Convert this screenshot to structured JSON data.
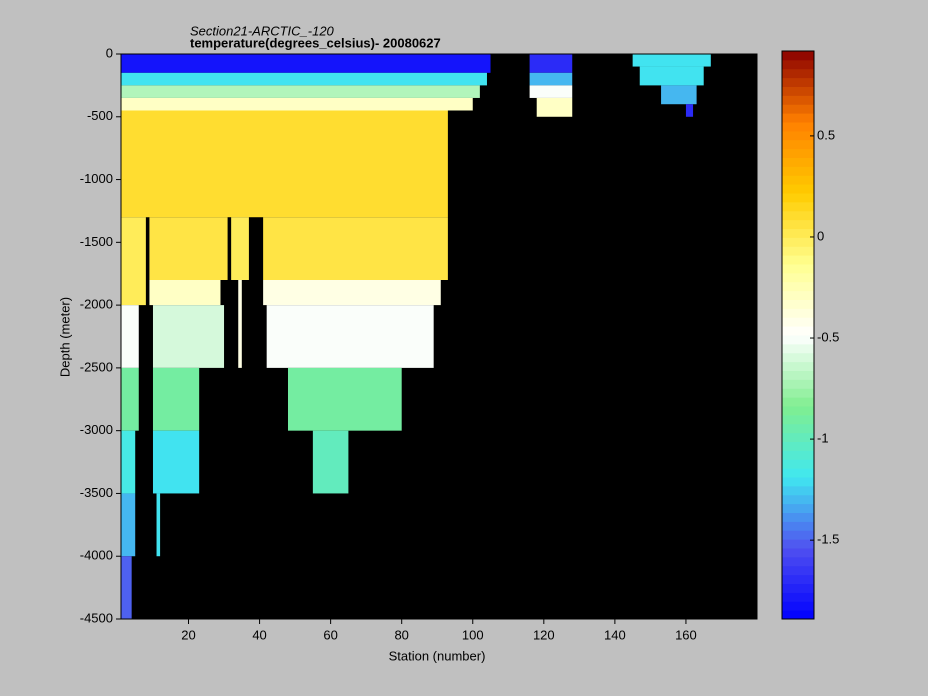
{
  "chart_data": {
    "type": "heatmap",
    "title": "Section21-ARCTIC_-120",
    "subtitle": "temperature(degrees_celsius)- 20080627",
    "x_label": "Station (number)",
    "y_label": "Depth (meter)",
    "xlim": [
      1,
      180
    ],
    "xticks": [
      20,
      40,
      60,
      80,
      100,
      120,
      140,
      160
    ],
    "ylim": [
      -4500,
      0
    ],
    "yticks": [
      0,
      -500,
      -1000,
      -1500,
      -2000,
      -2500,
      -3000,
      -3500,
      -4000,
      -4500
    ],
    "clim": [
      -1.89,
      0.92
    ],
    "cticks": [
      0.5,
      0,
      -0.5,
      -1,
      -1.5
    ],
    "background": "#000000",
    "colormap": [
      "#0000ff",
      "#5050f0",
      "#40e8f0",
      "#80ee90",
      "#ffffff",
      "#ffff90",
      "#ffcc00",
      "#ff8000",
      "#8b0000"
    ],
    "cells": [
      {
        "x": [
          1,
          105
        ],
        "depth": [
          0,
          -150
        ],
        "value": -1.8
      },
      {
        "x": [
          1,
          104
        ],
        "depth": [
          -150,
          -250
        ],
        "value": -1.2
      },
      {
        "x": [
          1,
          102
        ],
        "depth": [
          -250,
          -350
        ],
        "value": -0.7
      },
      {
        "x": [
          1,
          100
        ],
        "depth": [
          -350,
          -450
        ],
        "value": -0.3
      },
      {
        "x": [
          1,
          93
        ],
        "depth": [
          -450,
          -1300
        ],
        "value": 0.1
      },
      {
        "x": [
          1,
          8
        ],
        "depth": [
          -1300,
          -2000
        ],
        "value": 0.0
      },
      {
        "x": [
          9,
          31
        ],
        "depth": [
          -1300,
          -1800
        ],
        "value": 0.05
      },
      {
        "x": [
          32,
          37
        ],
        "depth": [
          -1300,
          -1800
        ],
        "value": 0.0
      },
      {
        "x": [
          41,
          93
        ],
        "depth": [
          -1300,
          -1800
        ],
        "value": 0.05
      },
      {
        "x": [
          9,
          29
        ],
        "depth": [
          -1800,
          -2000
        ],
        "value": -0.3
      },
      {
        "x": [
          41,
          91
        ],
        "depth": [
          -1800,
          -2000
        ],
        "value": -0.4
      },
      {
        "x": [
          34,
          35
        ],
        "depth": [
          -1800,
          -2500
        ],
        "value": -0.4
      },
      {
        "x": [
          1,
          6
        ],
        "depth": [
          -2000,
          -2500
        ],
        "value": -0.5
      },
      {
        "x": [
          10,
          30
        ],
        "depth": [
          -2000,
          -2500
        ],
        "value": -0.6
      },
      {
        "x": [
          42,
          89
        ],
        "depth": [
          -2000,
          -2500
        ],
        "value": -0.5
      },
      {
        "x": [
          1,
          6
        ],
        "depth": [
          -2500,
          -3000
        ],
        "value": -0.9
      },
      {
        "x": [
          10,
          23
        ],
        "depth": [
          -2500,
          -3000
        ],
        "value": -0.9
      },
      {
        "x": [
          48,
          80
        ],
        "depth": [
          -2500,
          -3000
        ],
        "value": -0.9
      },
      {
        "x": [
          1,
          5
        ],
        "depth": [
          -3000,
          -3500
        ],
        "value": -1.15
      },
      {
        "x": [
          10,
          23
        ],
        "depth": [
          -3000,
          -3500
        ],
        "value": -1.2
      },
      {
        "x": [
          55,
          65
        ],
        "depth": [
          -3000,
          -3500
        ],
        "value": -1.0
      },
      {
        "x": [
          1,
          5
        ],
        "depth": [
          -3500,
          -4000
        ],
        "value": -1.3
      },
      {
        "x": [
          11,
          12
        ],
        "depth": [
          -3500,
          -4000
        ],
        "value": -1.2
      },
      {
        "x": [
          1,
          4
        ],
        "depth": [
          -4000,
          -4500
        ],
        "value": -1.5
      },
      {
        "x": [
          116,
          128
        ],
        "depth": [
          0,
          -150
        ],
        "value": -1.7
      },
      {
        "x": [
          116,
          128
        ],
        "depth": [
          -150,
          -250
        ],
        "value": -1.3
      },
      {
        "x": [
          116,
          128
        ],
        "depth": [
          -250,
          -350
        ],
        "value": -0.5
      },
      {
        "x": [
          118,
          128
        ],
        "depth": [
          -350,
          -500
        ],
        "value": -0.3
      },
      {
        "x": [
          145,
          167
        ],
        "depth": [
          0,
          -100
        ],
        "value": -1.2
      },
      {
        "x": [
          147,
          165
        ],
        "depth": [
          -100,
          -250
        ],
        "value": -1.2
      },
      {
        "x": [
          153,
          163
        ],
        "depth": [
          -250,
          -400
        ],
        "value": -1.3
      },
      {
        "x": [
          160,
          162
        ],
        "depth": [
          -400,
          -500
        ],
        "value": -1.7
      }
    ]
  }
}
